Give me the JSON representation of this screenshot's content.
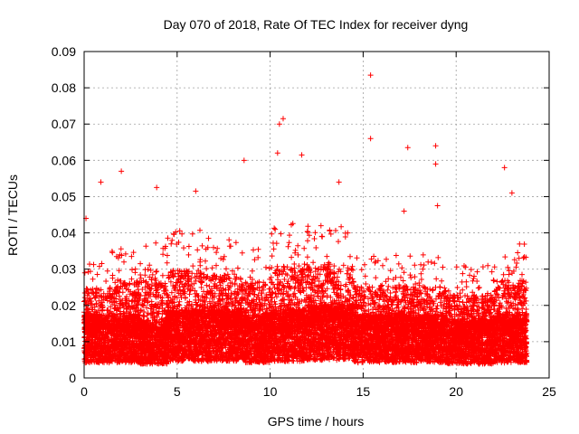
{
  "chart_data": {
    "type": "scatter",
    "title": "Day 070 of 2018, Rate Of TEC Index for receiver dyng",
    "xlabel": "GPS time / hours",
    "ylabel": "ROTI / TECUs",
    "xlim": [
      0,
      25
    ],
    "ylim": [
      0,
      0.09
    ],
    "x_ticks": [
      0,
      5,
      10,
      15,
      20,
      25
    ],
    "y_ticks": [
      0,
      0.01,
      0.02,
      0.03,
      0.04,
      0.05,
      0.06,
      0.07,
      0.08,
      0.09
    ],
    "x_tick_labels": [
      "0",
      "5",
      "10",
      "15",
      "20",
      "25"
    ],
    "y_tick_labels": [
      "0",
      "0.01",
      "0.02",
      "0.03",
      "0.04",
      "0.05",
      "0.06",
      "0.07",
      "0.08",
      "0.09"
    ],
    "grid": true,
    "marker": "+",
    "series_color": "#ff0000",
    "data_x_range": [
      0,
      23.8
    ],
    "notable_points": [
      {
        "x": 15.4,
        "y": 0.0835
      },
      {
        "x": 10.7,
        "y": 0.0715
      },
      {
        "x": 10.5,
        "y": 0.07
      },
      {
        "x": 15.4,
        "y": 0.066
      },
      {
        "x": 18.9,
        "y": 0.064
      },
      {
        "x": 17.4,
        "y": 0.0635
      },
      {
        "x": 10.4,
        "y": 0.062
      },
      {
        "x": 11.7,
        "y": 0.0615
      },
      {
        "x": 8.6,
        "y": 0.06
      },
      {
        "x": 18.9,
        "y": 0.059
      },
      {
        "x": 22.6,
        "y": 0.058
      },
      {
        "x": 2.0,
        "y": 0.057
      },
      {
        "x": 0.9,
        "y": 0.054
      },
      {
        "x": 23.0,
        "y": 0.051
      },
      {
        "x": 6.0,
        "y": 0.0515
      },
      {
        "x": 3.9,
        "y": 0.0525
      },
      {
        "x": 13.7,
        "y": 0.054
      },
      {
        "x": 17.2,
        "y": 0.046
      },
      {
        "x": 0.1,
        "y": 0.044
      },
      {
        "x": 19.0,
        "y": 0.0475
      }
    ],
    "segments": [
      {
        "x0": 0.0,
        "x1": 1.5,
        "base": 0.012,
        "spread": 0.022
      },
      {
        "x0": 1.5,
        "x1": 3.0,
        "base": 0.012,
        "spread": 0.025
      },
      {
        "x0": 3.0,
        "x1": 4.5,
        "base": 0.011,
        "spread": 0.028
      },
      {
        "x0": 4.5,
        "x1": 6.5,
        "base": 0.013,
        "spread": 0.028
      },
      {
        "x0": 6.5,
        "x1": 8.5,
        "base": 0.013,
        "spread": 0.026
      },
      {
        "x0": 8.5,
        "x1": 10.0,
        "base": 0.012,
        "spread": 0.024
      },
      {
        "x0": 10.0,
        "x1": 12.0,
        "base": 0.013,
        "spread": 0.03
      },
      {
        "x0": 12.0,
        "x1": 14.5,
        "base": 0.014,
        "spread": 0.028
      },
      {
        "x0": 14.5,
        "x1": 17.0,
        "base": 0.012,
        "spread": 0.022
      },
      {
        "x0": 17.0,
        "x1": 19.5,
        "base": 0.012,
        "spread": 0.022
      },
      {
        "x0": 19.5,
        "x1": 22.0,
        "base": 0.011,
        "spread": 0.02
      },
      {
        "x0": 22.0,
        "x1": 23.8,
        "base": 0.012,
        "spread": 0.025
      }
    ]
  }
}
